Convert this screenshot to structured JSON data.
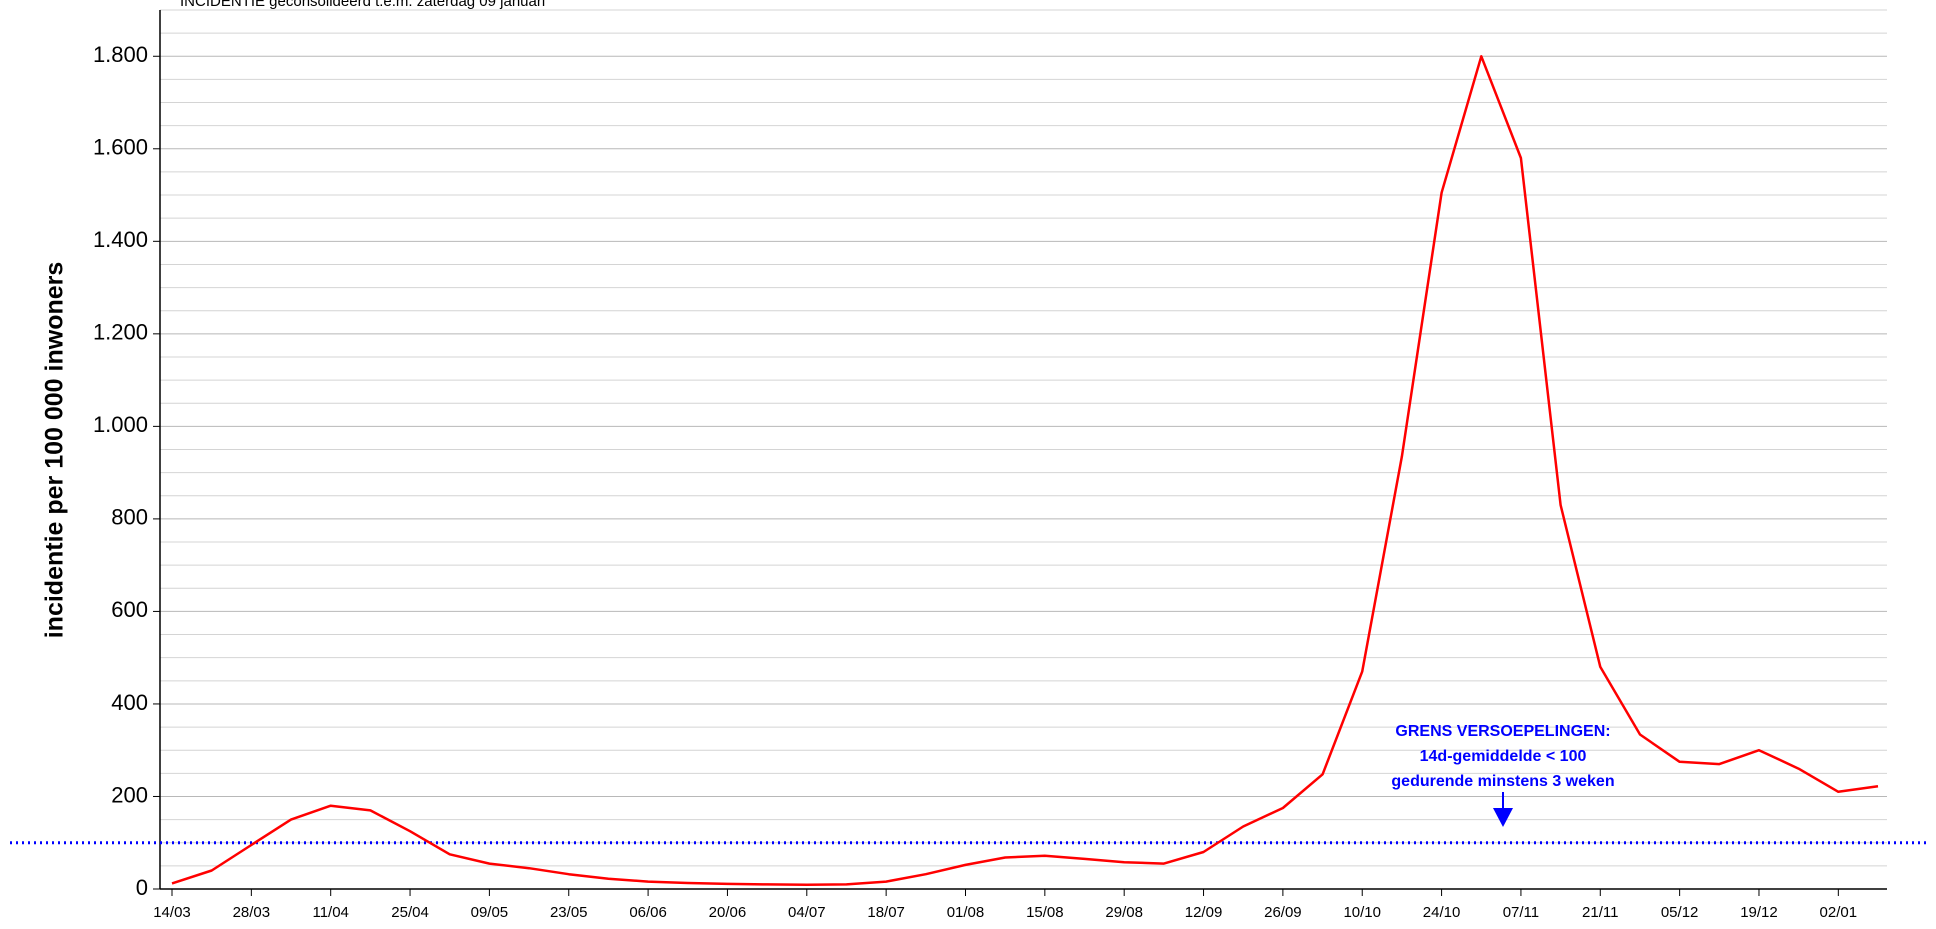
{
  "chart_data": {
    "type": "line",
    "title": "INCIDENTIE geconsolideerd t.e.m. zaterdag 09 januari",
    "y_label": "incidentie per 100 000 inwoners",
    "x": [
      "14/03",
      "21/03",
      "28/03",
      "04/04",
      "11/04",
      "18/04",
      "25/04",
      "02/05",
      "09/05",
      "16/05",
      "23/05",
      "30/05",
      "06/06",
      "13/06",
      "20/06",
      "27/06",
      "04/07",
      "11/07",
      "18/07",
      "25/07",
      "01/08",
      "08/08",
      "15/08",
      "22/08",
      "29/08",
      "05/09",
      "12/09",
      "19/09",
      "26/09",
      "03/10",
      "10/10",
      "17/10",
      "24/10",
      "31/10",
      "07/11",
      "14/11",
      "21/11",
      "28/11",
      "05/12",
      "12/12",
      "19/12",
      "26/12",
      "02/01",
      "09/01"
    ],
    "series": [
      {
        "name": "incidentie",
        "color": "#ff0000",
        "values": [
          12,
          40,
          95,
          150,
          180,
          170,
          125,
          75,
          55,
          45,
          32,
          22,
          16,
          13,
          11,
          10,
          9,
          10,
          16,
          32,
          52,
          68,
          72,
          65,
          58,
          55,
          80,
          135,
          175,
          248,
          470,
          935,
          1505,
          1800,
          1580,
          830,
          480,
          334,
          275,
          270,
          300,
          260,
          210,
          222
        ]
      }
    ],
    "xticks": [
      "14/03",
      "28/03",
      "11/04",
      "25/04",
      "09/05",
      "23/05",
      "06/06",
      "20/06",
      "04/07",
      "18/07",
      "01/08",
      "15/08",
      "29/08",
      "12/09",
      "26/09",
      "10/10",
      "24/10",
      "07/11",
      "21/11",
      "05/12",
      "19/12",
      "02/01"
    ],
    "ylim": [
      0,
      1900
    ],
    "yticks": [
      {
        "value": 0,
        "label": "0"
      },
      {
        "value": 200,
        "label": "200"
      },
      {
        "value": 400,
        "label": "400"
      },
      {
        "value": 600,
        "label": "600"
      },
      {
        "value": 800,
        "label": "800"
      },
      {
        "value": 1000,
        "label": "1.000"
      },
      {
        "value": 1200,
        "label": "1.200"
      },
      {
        "value": 1400,
        "label": "1.400"
      },
      {
        "value": 1600,
        "label": "1.600"
      },
      {
        "value": 1800,
        "label": "1.800"
      }
    ],
    "minor_yticks": [
      50,
      100,
      150,
      250,
      300,
      350,
      450,
      500,
      550,
      650,
      700,
      750,
      850,
      900,
      950,
      1050,
      1100,
      1150,
      1250,
      1300,
      1350,
      1450,
      1500,
      1550,
      1650,
      1700,
      1750,
      1850,
      1900
    ],
    "grid": true,
    "threshold": {
      "value": 100,
      "color": "#0000ff",
      "label": [
        "GRENS VERSOEPELINGEN:",
        "14d-gemiddelde < 100",
        "gedurende minstens 3 weken"
      ]
    }
  }
}
